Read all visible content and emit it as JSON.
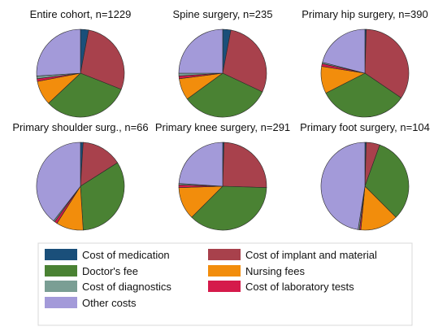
{
  "chart_data": [
    {
      "type": "pie",
      "title": "Entire cohort, n=1229",
      "slices": [
        {
          "name": "Cost of medication",
          "value": 3
        },
        {
          "name": "Cost of implant and material",
          "value": 28
        },
        {
          "name": "Doctor's fee",
          "value": 32
        },
        {
          "name": "Nursing fees",
          "value": 9
        },
        {
          "name": "Cost of laboratory tests",
          "value": 1
        },
        {
          "name": "Cost of diagnostics",
          "value": 1
        },
        {
          "name": "Other costs",
          "value": 26
        }
      ]
    },
    {
      "type": "pie",
      "title": "Spine surgery, n=235",
      "slices": [
        {
          "name": "Cost of medication",
          "value": 3
        },
        {
          "name": "Cost of implant and material",
          "value": 29
        },
        {
          "name": "Doctor's fee",
          "value": 33
        },
        {
          "name": "Nursing fees",
          "value": 8
        },
        {
          "name": "Cost of laboratory tests",
          "value": 1
        },
        {
          "name": "Cost of diagnostics",
          "value": 1
        },
        {
          "name": "Other costs",
          "value": 25
        }
      ]
    },
    {
      "type": "pie",
      "title": "Primary hip surgery, n=390",
      "slices": [
        {
          "name": "Cost of medication",
          "value": 0.5
        },
        {
          "name": "Cost of implant and material",
          "value": 34
        },
        {
          "name": "Doctor's fee",
          "value": 33
        },
        {
          "name": "Nursing fees",
          "value": 10
        },
        {
          "name": "Cost of laboratory tests",
          "value": 1
        },
        {
          "name": "Cost of diagnostics",
          "value": 0.5
        },
        {
          "name": "Other costs",
          "value": 21
        }
      ]
    },
    {
      "type": "pie",
      "title": "Primary shoulder surg., n=66",
      "slices": [
        {
          "name": "Cost of medication",
          "value": 1
        },
        {
          "name": "Cost of implant and material",
          "value": 15
        },
        {
          "name": "Doctor's fee",
          "value": 33
        },
        {
          "name": "Nursing fees",
          "value": 10
        },
        {
          "name": "Cost of laboratory tests",
          "value": 1
        },
        {
          "name": "Cost of diagnostics",
          "value": 0.5
        },
        {
          "name": "Other costs",
          "value": 39.5
        }
      ]
    },
    {
      "type": "pie",
      "title": "Primary knee surgery, n=291",
      "slices": [
        {
          "name": "Cost of medication",
          "value": 0.5
        },
        {
          "name": "Cost of implant and material",
          "value": 25
        },
        {
          "name": "Doctor's fee",
          "value": 37
        },
        {
          "name": "Nursing fees",
          "value": 12
        },
        {
          "name": "Cost of laboratory tests",
          "value": 1
        },
        {
          "name": "Cost of diagnostics",
          "value": 0.5
        },
        {
          "name": "Other costs",
          "value": 24
        }
      ]
    },
    {
      "type": "pie",
      "title": "Primary foot surgery, n=104",
      "slices": [
        {
          "name": "Cost of medication",
          "value": 0.5
        },
        {
          "name": "Cost of implant and material",
          "value": 5
        },
        {
          "name": "Doctor's fee",
          "value": 32
        },
        {
          "name": "Nursing fees",
          "value": 14
        },
        {
          "name": "Cost of laboratory tests",
          "value": 0.5
        },
        {
          "name": "Cost of diagnostics",
          "value": 0.5
        },
        {
          "name": "Other costs",
          "value": 47.5
        }
      ]
    }
  ],
  "legend": [
    {
      "name": "Cost of medication",
      "color": "#1a4f7a"
    },
    {
      "name": "Cost of implant and material",
      "color": "#a8414c"
    },
    {
      "name": "Doctor's fee",
      "color": "#4a8233"
    },
    {
      "name": "Nursing fees",
      "color": "#f28d0c"
    },
    {
      "name": "Cost of diagnostics",
      "color": "#7a9e94"
    },
    {
      "name": "Cost of laboratory tests",
      "color": "#d51a4b"
    },
    {
      "name": "Other costs",
      "color": "#a39ad9"
    }
  ],
  "legend_position": "bottom",
  "start_angle": "12 o'clock",
  "direction": "clockwise"
}
